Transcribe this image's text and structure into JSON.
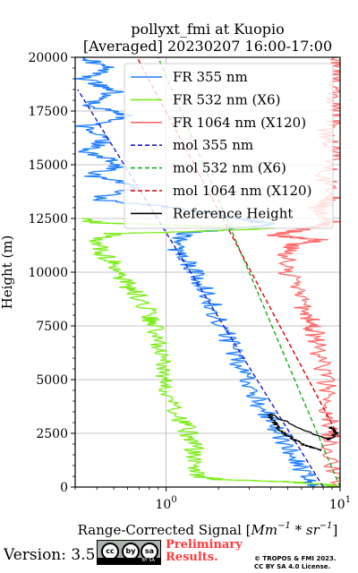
{
  "chart_data": {
    "type": "line",
    "title_line1": "pollyxt_fmi at Kuopio",
    "title_line2": "[Averaged] 20230207 16:00-17:00",
    "xlabel_main": "Range-Corrected Signal [",
    "xlabel_unit": "Mm",
    "xlabel_exp1": "−1",
    "xlabel_mid": " * ",
    "xlabel_unit2": "sr",
    "xlabel_exp2": "−1",
    "xlabel_end": "]",
    "ylabel": "Height (m)",
    "xscale": "log",
    "xlim": [
      0.3,
      10
    ],
    "ylim": [
      0,
      20000
    ],
    "xticks": [
      {
        "value": 1,
        "label": "10",
        "exp": "0"
      },
      {
        "value": 10,
        "label": "10",
        "exp": "1"
      }
    ],
    "yticks": [
      0,
      2500,
      5000,
      7500,
      10000,
      12500,
      15000,
      17500,
      20000
    ],
    "ytick_labels": [
      "0",
      "2500",
      "5000",
      "7500",
      "10000",
      "12500",
      "15000",
      "17500",
      "20000"
    ],
    "grid": true,
    "legend_position": "top-right",
    "series": [
      {
        "name": "FR 355 nm",
        "color": "#1f7fff",
        "style": "solid",
        "points": [
          [
            7.0,
            0
          ],
          [
            6.6,
            300
          ],
          [
            5.6,
            1200
          ],
          [
            4.8,
            2000
          ],
          [
            4.2,
            2800
          ],
          [
            3.6,
            3600
          ],
          [
            3.1,
            4500
          ],
          [
            2.7,
            5500
          ],
          [
            2.4,
            6500
          ],
          [
            2.1,
            7400
          ],
          [
            1.9,
            8300
          ],
          [
            1.65,
            9200
          ],
          [
            1.45,
            10000
          ],
          [
            1.25,
            10700
          ],
          [
            1.1,
            11300
          ],
          [
            1.3,
            11800
          ],
          [
            2.2,
            12000
          ],
          [
            4.0,
            12200
          ],
          [
            2.4,
            12600
          ],
          [
            0.9,
            13100
          ],
          [
            0.38,
            13400
          ],
          [
            0.7,
            14000
          ],
          [
            0.36,
            14500
          ],
          [
            0.55,
            15000
          ],
          [
            0.35,
            15600
          ],
          [
            0.45,
            16200
          ],
          [
            0.34,
            16800
          ],
          [
            0.6,
            17300
          ],
          [
            0.35,
            17800
          ],
          [
            0.5,
            18400
          ],
          [
            0.34,
            19000
          ],
          [
            0.45,
            19500
          ],
          [
            0.33,
            20000
          ]
        ]
      },
      {
        "name": "FR 532 nm (X6)",
        "color": "#7ced1a",
        "style": "solid",
        "points": [
          [
            9.0,
            0
          ],
          [
            8.5,
            100
          ],
          [
            5.0,
            250
          ],
          [
            2.0,
            350
          ],
          [
            1.5,
            500
          ],
          [
            1.4,
            1000
          ],
          [
            1.45,
            1800
          ],
          [
            1.35,
            2500
          ],
          [
            1.2,
            3200
          ],
          [
            1.05,
            4200
          ],
          [
            1.0,
            5000
          ],
          [
            0.95,
            5800
          ],
          [
            0.9,
            6500
          ],
          [
            0.85,
            7400
          ],
          [
            0.82,
            8000
          ],
          [
            0.7,
            8800
          ],
          [
            0.6,
            9300
          ],
          [
            0.55,
            9800
          ],
          [
            0.5,
            10400
          ],
          [
            0.42,
            11000
          ],
          [
            0.38,
            11400
          ],
          [
            0.5,
            11800
          ],
          [
            1.5,
            11900
          ],
          [
            4.5,
            12050
          ],
          [
            1.0,
            12200
          ],
          [
            0.4,
            12300
          ],
          [
            0.33,
            12500
          ]
        ]
      },
      {
        "name": "FR 1064 nm (X120)",
        "color": "#ff6b6b",
        "style": "solid",
        "points": [
          [
            9.5,
            0
          ],
          [
            9.0,
            1500
          ],
          [
            8.8,
            2500
          ],
          [
            8.6,
            3500
          ],
          [
            8.4,
            4500
          ],
          [
            8.0,
            5500
          ],
          [
            7.5,
            6500
          ],
          [
            7.0,
            7300
          ],
          [
            6.8,
            7800
          ],
          [
            6.0,
            8500
          ],
          [
            5.5,
            9200
          ],
          [
            5.0,
            10000
          ],
          [
            4.8,
            10800
          ],
          [
            5.5,
            11300
          ],
          [
            8.0,
            11500
          ],
          [
            4.2,
            11700
          ],
          [
            6.0,
            12000
          ],
          [
            9.0,
            12300
          ],
          [
            7.5,
            13000
          ],
          [
            9.5,
            13500
          ],
          [
            8.0,
            14500
          ],
          [
            10.0,
            15500
          ],
          [
            8.0,
            16500
          ],
          [
            10.0,
            17300
          ],
          [
            9.0,
            18500
          ],
          [
            10.0,
            19500
          ],
          [
            9.5,
            20000
          ]
        ]
      },
      {
        "name": "mol 355 nm",
        "color": "#1a1acc",
        "style": "dashed",
        "points": [
          [
            8.0,
            0
          ],
          [
            0.31,
            18500
          ]
        ]
      },
      {
        "name": "mol 532 nm (X6)",
        "color": "#1aaa1a",
        "style": "dashed",
        "points": [
          [
            10.0,
            0
          ],
          [
            0.9,
            20000
          ]
        ]
      },
      {
        "name": "mol 1064 nm (X120)",
        "color": "#dd0000",
        "style": "dashed",
        "points": [
          [
            14.0,
            0
          ],
          [
            0.68,
            20000
          ]
        ]
      },
      {
        "name": "Reference Height",
        "color": "#000000",
        "style": "solid",
        "points": [
          [
            7.8,
            1700
          ],
          [
            6.0,
            2000
          ],
          [
            5.0,
            2400
          ],
          [
            4.6,
            2600
          ],
          [
            4.2,
            3000
          ],
          [
            3.9,
            3400
          ],
          [
            8.5,
            2200
          ],
          [
            9.6,
            2500
          ],
          [
            8.8,
            2800
          ]
        ]
      }
    ]
  },
  "footer": {
    "version": "Version: 3.5",
    "preliminary_line1": "Preliminary",
    "preliminary_line2": "Results.",
    "copyright_line1": "© TROPOS & FMI 2023.",
    "copyright_line2": "CC BY SA 4.0 License.",
    "cc_badge_text": "BY   SA",
    "cc_symbols": [
      "cc",
      "by",
      "sa"
    ]
  }
}
